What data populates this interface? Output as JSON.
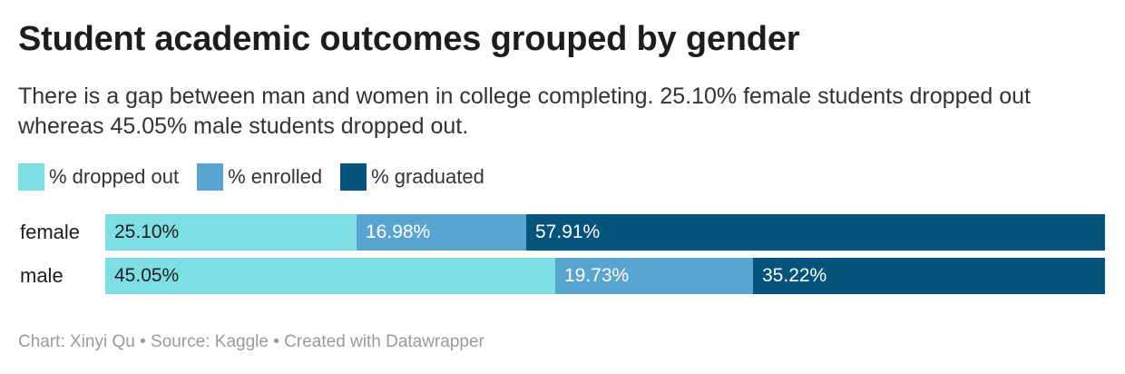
{
  "header": {
    "title": "Student academic outcomes grouped by gender",
    "subtitle": "There is a gap between man and women in college completing. 25.10% female students dropped out whereas 45.05% male students dropped out."
  },
  "footer": {
    "credit": "Chart: Xinyi Qu • Source: Kaggle • Created with Datawrapper"
  },
  "colors": {
    "dropped": "#7ddfe4",
    "enrolled": "#59a5d1",
    "graduated": "#05547c"
  },
  "chart_data": {
    "type": "bar",
    "orientation": "horizontal",
    "stacked": true,
    "title": "Student academic outcomes grouped by gender",
    "categories": [
      "female",
      "male"
    ],
    "series": [
      {
        "name": "% dropped out",
        "values": [
          25.1,
          45.05
        ],
        "labels": [
          "25.10%",
          "45.05%"
        ],
        "color": "#7ddfe4",
        "text_color": "#1d1d1d"
      },
      {
        "name": "% enrolled",
        "values": [
          16.98,
          19.73
        ],
        "labels": [
          "16.98%",
          "19.73%"
        ],
        "color": "#59a5d1",
        "text_color": "#ffffff"
      },
      {
        "name": "% graduated",
        "values": [
          57.91,
          35.22
        ],
        "labels": [
          "57.91%",
          "35.22%"
        ],
        "color": "#05547c",
        "text_color": "#ffffff"
      }
    ],
    "xlim": [
      0,
      100
    ],
    "legend": "top-left",
    "grid": false
  }
}
